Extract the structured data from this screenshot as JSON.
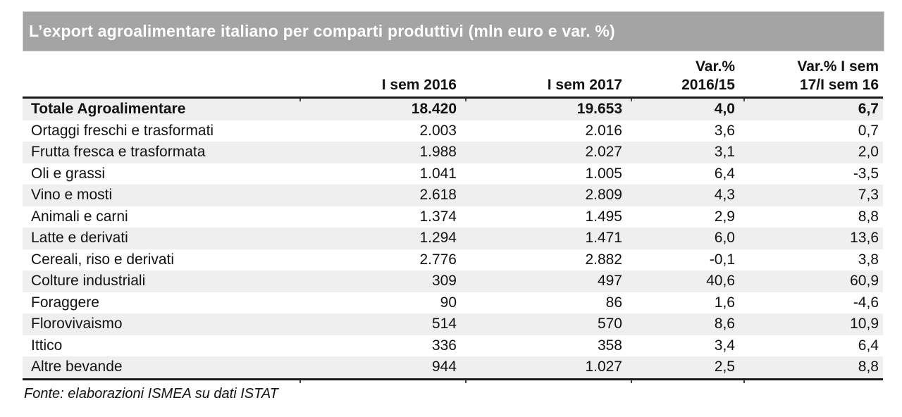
{
  "title": "L’export agroalimentare italiano per comparti produttivi (mln euro e var. %)",
  "colors": {
    "title_bg": "#a4a4a4",
    "title_text": "#ffffff",
    "stripe": "#efefef",
    "text": "#121212",
    "line": "#1a1a1a"
  },
  "table": {
    "header": {
      "product": "",
      "sem2016": "I sem 2016",
      "sem2017": "I sem 2017",
      "var1_line1": "Var.%",
      "var1_line2": "2016/15",
      "var2_line1": "Var.% I sem",
      "var2_line2": "17/I sem 16"
    },
    "rows": [
      {
        "label": "Totale Agroalimentare",
        "sem_2016": "18.420",
        "sem_2017": "19.653",
        "var_2016_15": "4,0",
        "var_isem": "6,7"
      },
      {
        "label": "Ortaggi freschi e trasformati",
        "sem_2016": "2.003",
        "sem_2017": "2.016",
        "var_2016_15": "3,6",
        "var_isem": "0,7"
      },
      {
        "label": "Frutta fresca e trasformata",
        "sem_2016": "1.988",
        "sem_2017": "2.027",
        "var_2016_15": "3,1",
        "var_isem": "2,0"
      },
      {
        "label": "Oli e grassi",
        "sem_2016": "1.041",
        "sem_2017": "1.005",
        "var_2016_15": "6,4",
        "var_isem": "-3,5"
      },
      {
        "label": "Vino e mosti",
        "sem_2016": "2.618",
        "sem_2017": "2.809",
        "var_2016_15": "4,3",
        "var_isem": "7,3"
      },
      {
        "label": "Animali e carni",
        "sem_2016": "1.374",
        "sem_2017": "1.495",
        "var_2016_15": "2,9",
        "var_isem": "8,8"
      },
      {
        "label": "Latte e derivati",
        "sem_2016": "1.294",
        "sem_2017": "1.471",
        "var_2016_15": "6,0",
        "var_isem": "13,6"
      },
      {
        "label": "Cereali, riso e derivati",
        "sem_2016": "2.776",
        "sem_2017": "2.882",
        "var_2016_15": "-0,1",
        "var_isem": "3,8"
      },
      {
        "label": "Colture industriali",
        "sem_2016": "309",
        "sem_2017": "497",
        "var_2016_15": "40,6",
        "var_isem": "60,9"
      },
      {
        "label": "Foraggere",
        "sem_2016": "90",
        "sem_2017": "86",
        "var_2016_15": "1,6",
        "var_isem": "-4,6"
      },
      {
        "label": "Florovivaismo",
        "sem_2016": "514",
        "sem_2017": "570",
        "var_2016_15": "8,6",
        "var_isem": "10,9"
      },
      {
        "label": "Ittico",
        "sem_2016": "336",
        "sem_2017": "358",
        "var_2016_15": "3,4",
        "var_isem": "6,4"
      },
      {
        "label": "Altre bevande",
        "sem_2016": "944",
        "sem_2017": "1.027",
        "var_2016_15": "2,5",
        "var_isem": "8,8"
      }
    ]
  },
  "footer": {
    "source": "Fonte: elaborazioni ISMEA su dati ISTAT"
  }
}
